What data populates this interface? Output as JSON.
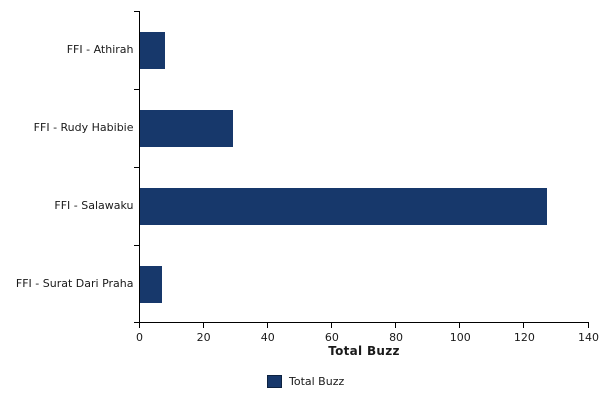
{
  "chart_data": {
    "type": "bar",
    "orientation": "horizontal",
    "title": "",
    "categories": [
      "FFI - Athirah",
      "FFI - Rudy Habibie",
      "FFI - Salawaku",
      "FFI - Surat Dari Praha"
    ],
    "series": [
      {
        "name": "Total Buzz",
        "values": [
          8,
          29,
          127,
          7
        ]
      }
    ],
    "xlabel": "Total Buzz",
    "ylabel": "",
    "xlim": [
      0,
      140
    ],
    "xticks": [
      0,
      20,
      40,
      60,
      80,
      100,
      120,
      140
    ],
    "grid": false,
    "legend_position": "bottom-center",
    "colors": {
      "bar_fill": "#17386B",
      "legend_swatch_fill": "#17386B",
      "legend_swatch_border": "#0D2240",
      "axis": "#000000",
      "text": "#1a1a1a",
      "background": "#ffffff"
    }
  },
  "legend": {
    "label": "Total Buzz"
  }
}
